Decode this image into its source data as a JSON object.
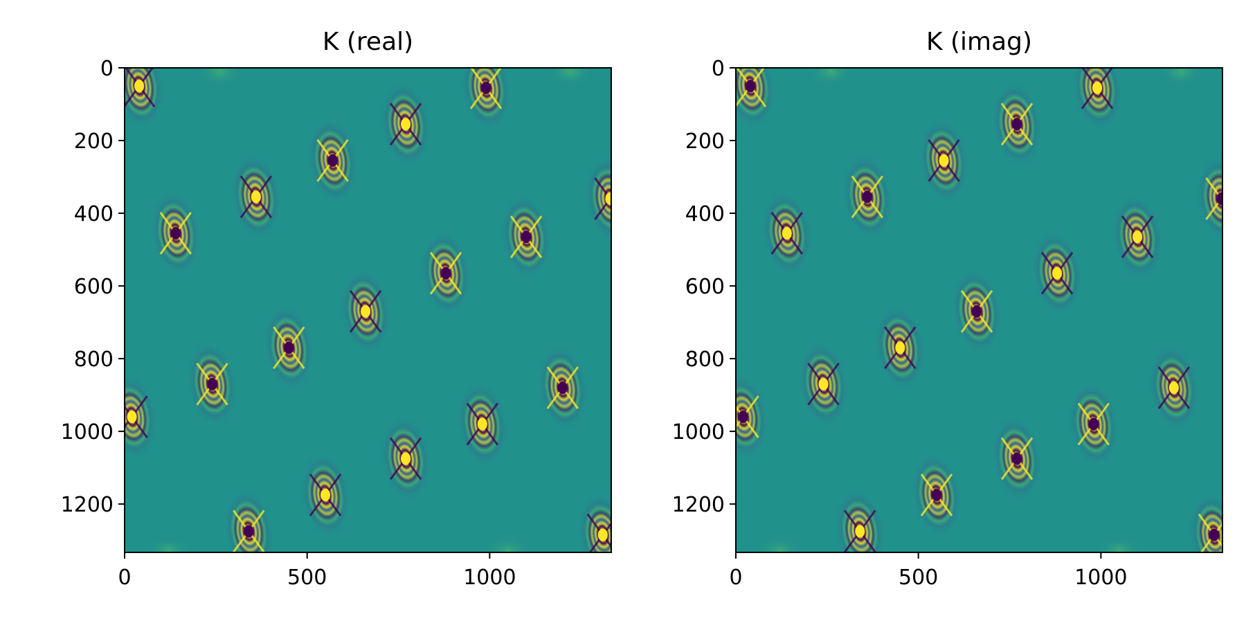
{
  "chart_data": [
    {
      "type": "heatmap",
      "title": "K (real)",
      "xlabel": "",
      "ylabel": "",
      "xlim": [
        0,
        1333
      ],
      "ylim": [
        1333,
        0
      ],
      "x_ticks": [
        0,
        500,
        1000
      ],
      "y_ticks": [
        0,
        200,
        400,
        600,
        800,
        1000,
        1200
      ],
      "colormap": "viridis",
      "background_color": "#21918c",
      "features": [
        {
          "x": 40,
          "y": 50,
          "center": "yellow"
        },
        {
          "x": 260,
          "y": 10,
          "center": "faint"
        },
        {
          "x": 990,
          "y": 55,
          "center": "purple"
        },
        {
          "x": 1220,
          "y": 10,
          "center": "faint"
        },
        {
          "x": 770,
          "y": 155,
          "center": "yellow"
        },
        {
          "x": 570,
          "y": 255,
          "center": "purple"
        },
        {
          "x": 360,
          "y": 355,
          "center": "yellow"
        },
        {
          "x": 1330,
          "y": 360,
          "center": "yellow"
        },
        {
          "x": 140,
          "y": 455,
          "center": "purple"
        },
        {
          "x": 1100,
          "y": 465,
          "center": "purple"
        },
        {
          "x": 880,
          "y": 565,
          "center": "purple"
        },
        {
          "x": 660,
          "y": 670,
          "center": "yellow"
        },
        {
          "x": 450,
          "y": 770,
          "center": "purple"
        },
        {
          "x": 240,
          "y": 870,
          "center": "purple"
        },
        {
          "x": 1200,
          "y": 880,
          "center": "purple"
        },
        {
          "x": 20,
          "y": 960,
          "center": "yellow"
        },
        {
          "x": 980,
          "y": 980,
          "center": "yellow"
        },
        {
          "x": 770,
          "y": 1075,
          "center": "yellow"
        },
        {
          "x": 550,
          "y": 1175,
          "center": "yellow"
        },
        {
          "x": 340,
          "y": 1275,
          "center": "purple"
        },
        {
          "x": 1310,
          "y": 1285,
          "center": "yellow"
        },
        {
          "x": 120,
          "y": 1330,
          "center": "faint"
        },
        {
          "x": 1050,
          "y": 1330,
          "center": "faint"
        }
      ]
    },
    {
      "type": "heatmap",
      "title": "K (imag)",
      "xlabel": "",
      "ylabel": "",
      "xlim": [
        0,
        1333
      ],
      "ylim": [
        1333,
        0
      ],
      "x_ticks": [
        0,
        500,
        1000
      ],
      "y_ticks": [
        0,
        200,
        400,
        600,
        800,
        1000,
        1200
      ],
      "colormap": "viridis",
      "background_color": "#21918c",
      "features": [
        {
          "x": 40,
          "y": 50,
          "center": "purple"
        },
        {
          "x": 260,
          "y": 10,
          "center": "faint"
        },
        {
          "x": 990,
          "y": 55,
          "center": "yellow"
        },
        {
          "x": 1220,
          "y": 10,
          "center": "faint"
        },
        {
          "x": 770,
          "y": 155,
          "center": "purple"
        },
        {
          "x": 570,
          "y": 255,
          "center": "yellow"
        },
        {
          "x": 360,
          "y": 355,
          "center": "purple"
        },
        {
          "x": 1330,
          "y": 360,
          "center": "purple"
        },
        {
          "x": 140,
          "y": 455,
          "center": "yellow"
        },
        {
          "x": 1100,
          "y": 465,
          "center": "yellow"
        },
        {
          "x": 880,
          "y": 565,
          "center": "yellow"
        },
        {
          "x": 660,
          "y": 670,
          "center": "purple"
        },
        {
          "x": 450,
          "y": 770,
          "center": "yellow"
        },
        {
          "x": 240,
          "y": 870,
          "center": "yellow"
        },
        {
          "x": 1200,
          "y": 880,
          "center": "yellow"
        },
        {
          "x": 20,
          "y": 960,
          "center": "purple"
        },
        {
          "x": 980,
          "y": 980,
          "center": "purple"
        },
        {
          "x": 770,
          "y": 1075,
          "center": "purple"
        },
        {
          "x": 550,
          "y": 1175,
          "center": "purple"
        },
        {
          "x": 340,
          "y": 1275,
          "center": "yellow"
        },
        {
          "x": 1310,
          "y": 1285,
          "center": "purple"
        },
        {
          "x": 120,
          "y": 1330,
          "center": "faint"
        },
        {
          "x": 1050,
          "y": 1330,
          "center": "faint"
        }
      ]
    }
  ]
}
